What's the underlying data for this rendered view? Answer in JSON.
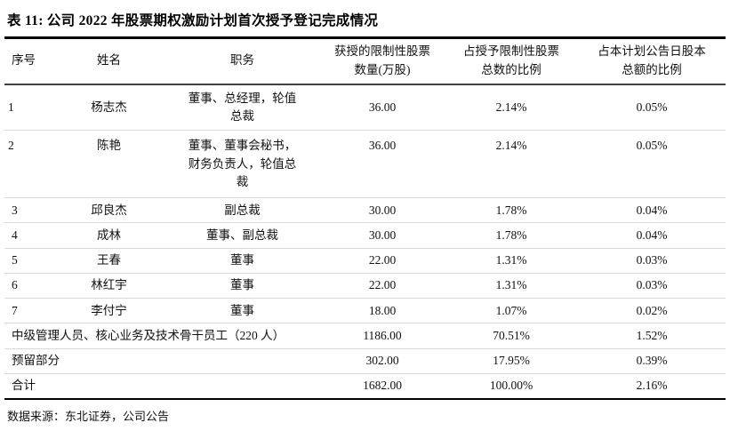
{
  "title": "表 11: 公司 2022 年股票期权激励计划首次授予登记完成情况",
  "colors": {
    "text": "#111111",
    "heavy_rule": "#000000",
    "header_rule": "#3f3f3f",
    "row_separator": "#d9d9d9",
    "background": "#ffffff"
  },
  "table": {
    "headers": {
      "no": "序号",
      "name": "姓名",
      "position": "职务",
      "shares_line1": "获授的限制性股票",
      "shares_line2": "数量(万股)",
      "pct_grant_line1": "占授予限制性股票",
      "pct_grant_line2": "总数的比例",
      "pct_capital_line1": "占本计划公告日股本",
      "pct_capital_line2": "总额的比例"
    },
    "rows": [
      {
        "no": "1",
        "name": "杨志杰",
        "position": "董事、总经理，轮值总裁",
        "shares": "36.00",
        "pct_grant": "2.14%",
        "pct_capital": "0.05%"
      },
      {
        "no": "2",
        "name": "陈艳",
        "position": "董事、董事会秘书，财务负责人，轮值总裁",
        "shares": "36.00",
        "pct_grant": "2.14%",
        "pct_capital": "0.05%"
      },
      {
        "no": "3",
        "name": "邱良杰",
        "position": "副总裁",
        "shares": "30.00",
        "pct_grant": "1.78%",
        "pct_capital": "0.04%"
      },
      {
        "no": "4",
        "name": "成林",
        "position": "董事、副总裁",
        "shares": "30.00",
        "pct_grant": "1.78%",
        "pct_capital": "0.04%"
      },
      {
        "no": "5",
        "name": "王春",
        "position": "董事",
        "shares": "22.00",
        "pct_grant": "1.31%",
        "pct_capital": "0.03%"
      },
      {
        "no": "6",
        "name": "林红宇",
        "position": "董事",
        "shares": "22.00",
        "pct_grant": "1.31%",
        "pct_capital": "0.03%"
      },
      {
        "no": "7",
        "name": "李付宁",
        "position": "董事",
        "shares": "18.00",
        "pct_grant": "1.07%",
        "pct_capital": "0.02%"
      }
    ],
    "summary_rows": [
      {
        "label": "中级管理人员、核心业务及技术骨干员工（220 人）",
        "shares": "1186.00",
        "pct_grant": "70.51%",
        "pct_capital": "1.52%"
      },
      {
        "label": "预留部分",
        "shares": "302.00",
        "pct_grant": "17.95%",
        "pct_capital": "0.39%"
      },
      {
        "label": "合计",
        "shares": "1682.00",
        "pct_grant": "100.00%",
        "pct_capital": "2.16%"
      }
    ]
  },
  "footer": {
    "source": "数据来源：东北证券，公司公告"
  }
}
